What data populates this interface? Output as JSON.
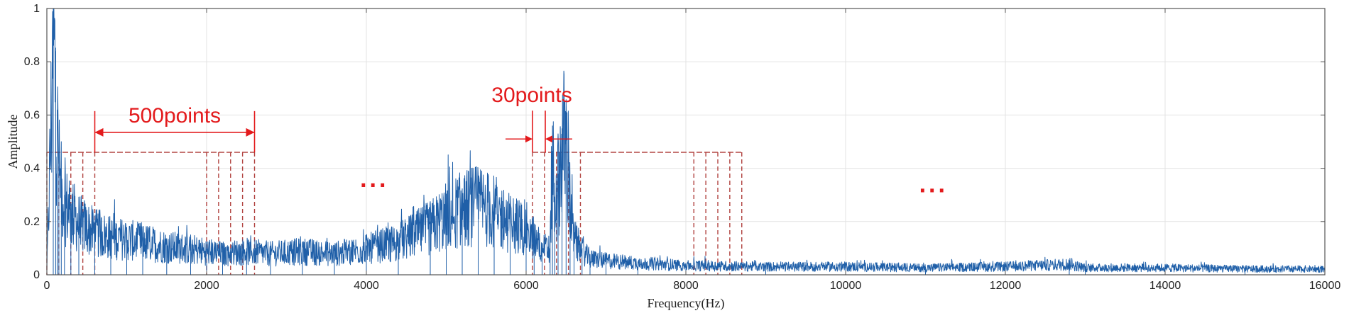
{
  "chart_data": {
    "type": "line",
    "title": "",
    "xlabel": "Frequency(Hz)",
    "ylabel": "Amplitude",
    "xlim": [
      0,
      16000
    ],
    "ylim": [
      0,
      1
    ],
    "x_ticks": [
      0,
      2000,
      4000,
      6000,
      8000,
      10000,
      12000,
      14000,
      16000
    ],
    "y_ticks": [
      0,
      0.2,
      0.4,
      0.6,
      0.8,
      1
    ],
    "x_tick_labels": [
      "0",
      "2000",
      "4000",
      "6000",
      "8000",
      "10000",
      "12000",
      "14000",
      "16000"
    ],
    "y_tick_labels": [
      "0",
      "0.2",
      "0.4",
      "0.6",
      "0.8",
      "1"
    ],
    "grid": true,
    "series": [
      {
        "color": "#1f5fa8",
        "x": [
          0,
          80,
          110,
          130,
          150,
          180,
          220,
          300,
          400,
          600,
          800,
          1000,
          1200,
          1500,
          1800,
          2000,
          2200,
          2500,
          2800,
          3200,
          3600,
          4000,
          4400,
          4800,
          5000,
          5200,
          5400,
          5600,
          5800,
          6000,
          6100,
          6200,
          6300,
          6330,
          6360,
          6400,
          6450,
          6500,
          6550,
          6600,
          6700,
          6800,
          7000,
          7400,
          8000,
          9000,
          10000,
          11000,
          12000,
          12800,
          13000,
          14000,
          15000,
          16000
        ],
        "y": [
          0.02,
          0.96,
          0.84,
          0.62,
          0.45,
          0.35,
          0.3,
          0.27,
          0.22,
          0.18,
          0.16,
          0.15,
          0.14,
          0.12,
          0.11,
          0.1,
          0.09,
          0.1,
          0.09,
          0.1,
          0.09,
          0.11,
          0.14,
          0.2,
          0.25,
          0.28,
          0.3,
          0.27,
          0.22,
          0.2,
          0.15,
          0.12,
          0.1,
          0.56,
          0.25,
          0.38,
          0.55,
          0.58,
          0.3,
          0.15,
          0.1,
          0.07,
          0.06,
          0.05,
          0.04,
          0.035,
          0.035,
          0.03,
          0.035,
          0.045,
          0.03,
          0.03,
          0.025,
          0.025
        ]
      }
    ],
    "annotations": [
      {
        "text": "500points",
        "x_start": 600,
        "x_end": 2600,
        "y": 0.535
      },
      {
        "text": "30points",
        "x_start": 6080,
        "x_end": 6240,
        "y": 0.51
      },
      {
        "text": "...",
        "x": 4100,
        "y": 0.33
      },
      {
        "text": "...",
        "x": 11100,
        "y": 0.31
      }
    ],
    "window_boundaries_left": [
      0,
      150,
      300,
      450,
      600,
      2000,
      2150,
      2300,
      2450,
      2600
    ],
    "window_boundaries_right": [
      6080,
      6230,
      6380,
      6530,
      6680,
      8100,
      8250,
      8400,
      8550,
      8700
    ],
    "window_top": 0.46,
    "colors": {
      "series": "#1f5fa8",
      "annotation": "#e31a1c",
      "boundary": "#b0413e"
    }
  }
}
